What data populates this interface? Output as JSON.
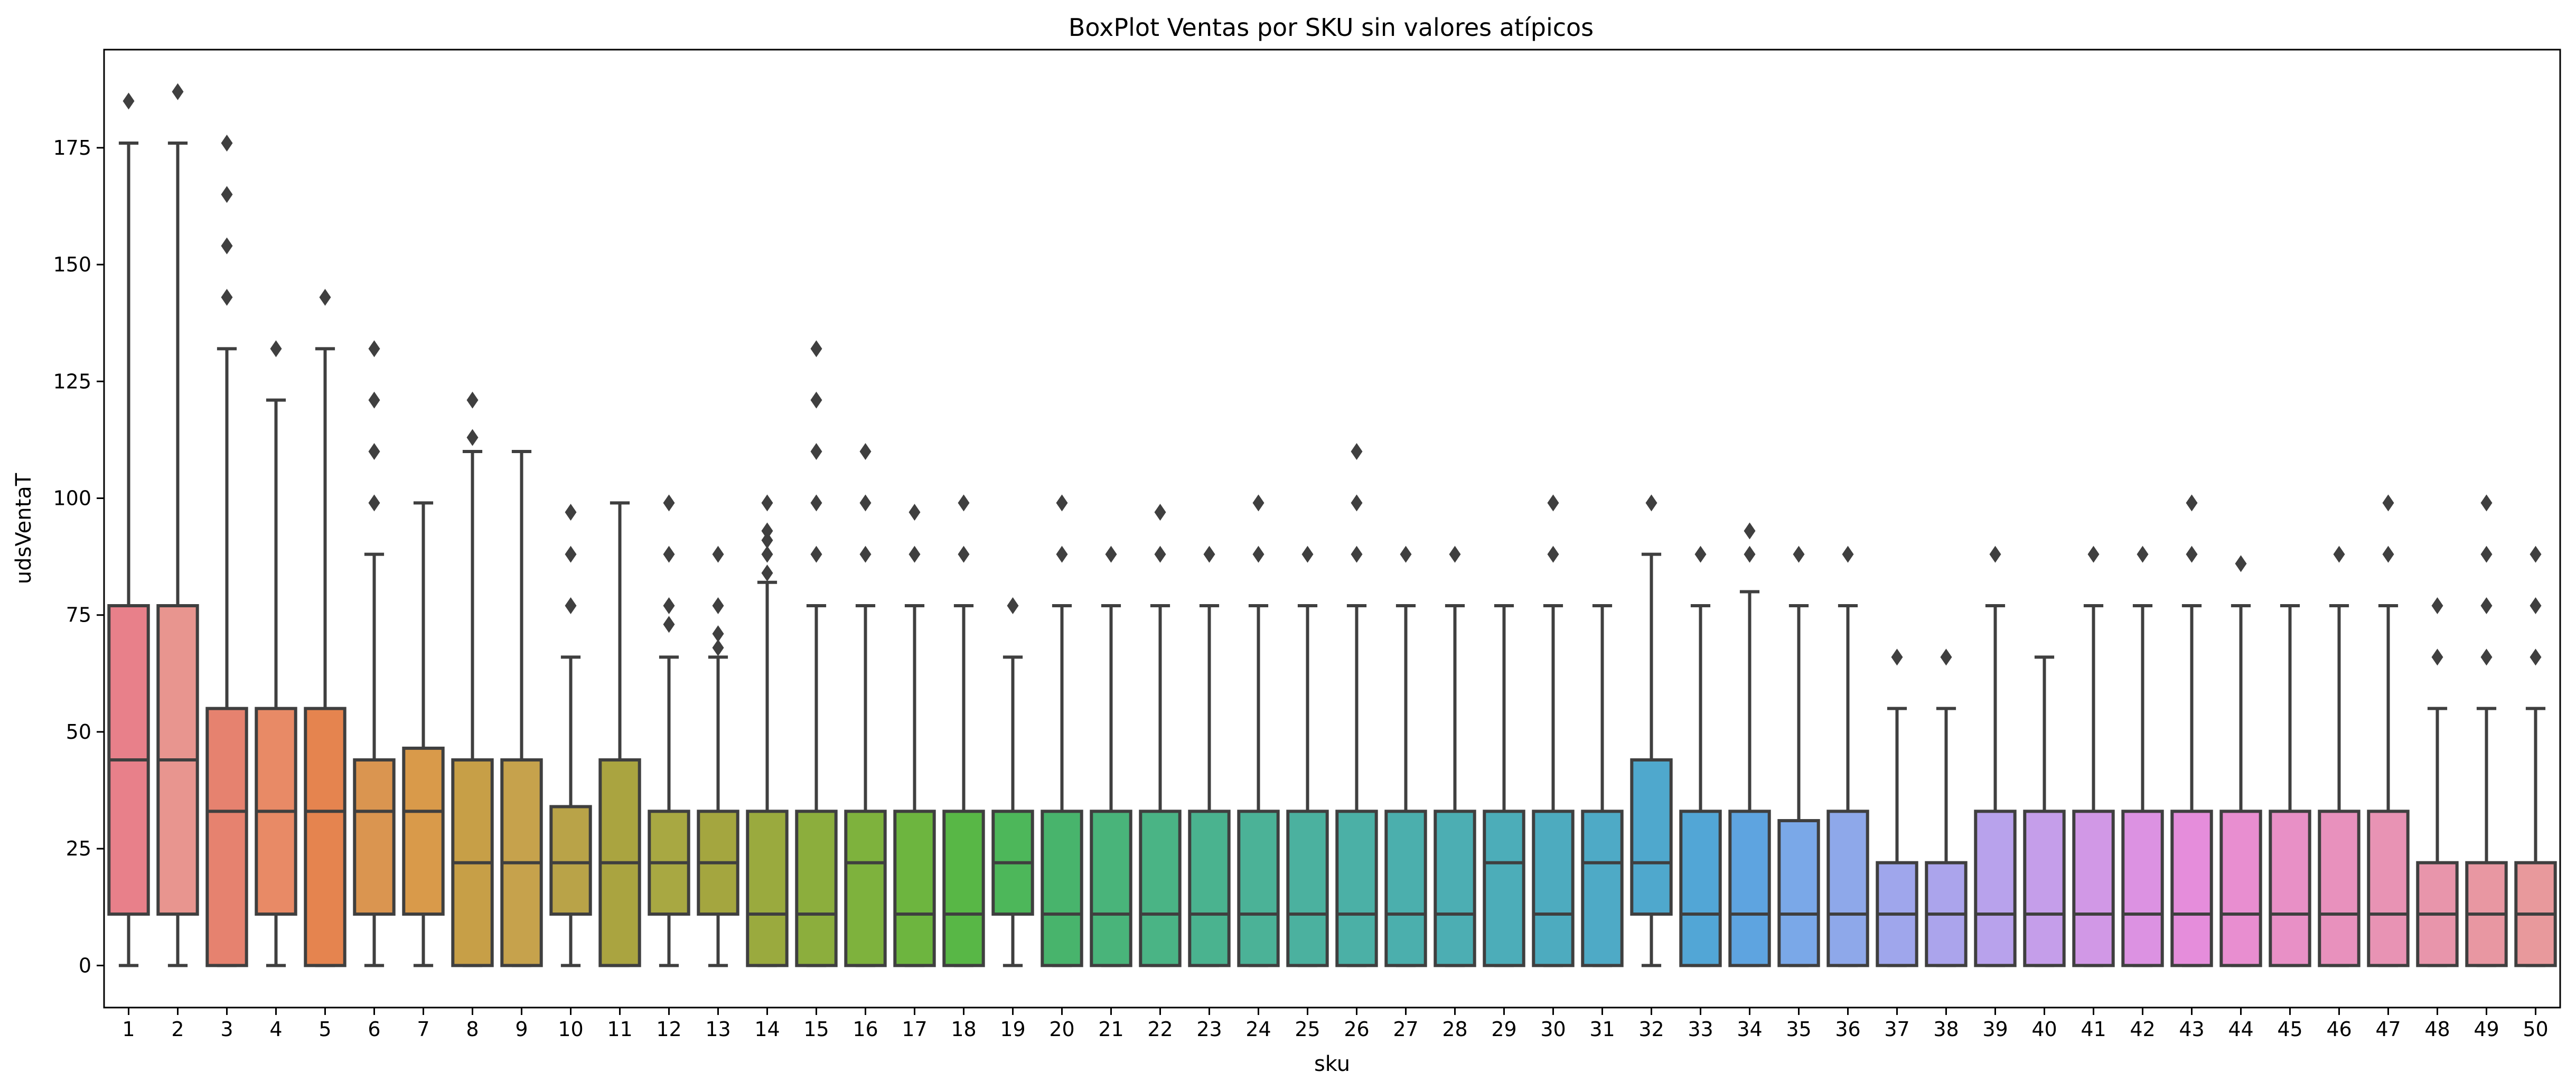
{
  "chart_data": {
    "type": "box",
    "title": "BoxPlot Ventas por SKU sin valores atípicos",
    "xlabel": "sku",
    "ylabel": "udsVentaT",
    "ylim": [
      -9,
      196
    ],
    "yticks": [
      0,
      25,
      50,
      75,
      100,
      125,
      150,
      175
    ],
    "grid": false,
    "categories": [
      "1",
      "2",
      "3",
      "4",
      "5",
      "6",
      "7",
      "8",
      "9",
      "10",
      "11",
      "12",
      "13",
      "14",
      "15",
      "16",
      "17",
      "18",
      "19",
      "20",
      "21",
      "22",
      "23",
      "24",
      "25",
      "26",
      "27",
      "28",
      "29",
      "30",
      "31",
      "32",
      "33",
      "34",
      "35",
      "36",
      "37",
      "38",
      "39",
      "40",
      "41",
      "42",
      "43",
      "44",
      "45",
      "46",
      "47",
      "48",
      "49",
      "50"
    ],
    "boxes": [
      {
        "sku": "1",
        "min": 0,
        "q1": 11,
        "median": 44,
        "q3": 77,
        "max": 176,
        "fliers": [
          185
        ],
        "color": "#e8808a"
      },
      {
        "sku": "2",
        "min": 0,
        "q1": 11,
        "median": 44,
        "q3": 77,
        "max": 176,
        "fliers": [
          187
        ],
        "color": "#e8958f"
      },
      {
        "sku": "3",
        "min": 0,
        "q1": 0,
        "median": 33,
        "q3": 55,
        "max": 132,
        "fliers": [
          143,
          154,
          165,
          176
        ],
        "color": "#e6826f"
      },
      {
        "sku": "4",
        "min": 0,
        "q1": 11,
        "median": 33,
        "q3": 55,
        "max": 121,
        "fliers": [
          132
        ],
        "color": "#e88a66"
      },
      {
        "sku": "5",
        "min": 0,
        "q1": 0,
        "median": 33,
        "q3": 55,
        "max": 132,
        "fliers": [
          143
        ],
        "color": "#e5844f"
      },
      {
        "sku": "6",
        "min": 0,
        "q1": 11,
        "median": 33,
        "q3": 44,
        "max": 88,
        "fliers": [
          99,
          110,
          121,
          132
        ],
        "color": "#da9550"
      },
      {
        "sku": "7",
        "min": 0,
        "q1": 11,
        "median": 33,
        "q3": 46.5,
        "max": 99,
        "fliers": [],
        "color": "#d99a4a"
      },
      {
        "sku": "8",
        "min": 0,
        "q1": 0,
        "median": 22,
        "q3": 44,
        "max": 110,
        "fliers": [
          113,
          121
        ],
        "color": "#c79f47"
      },
      {
        "sku": "9",
        "min": 0,
        "q1": 0,
        "median": 22,
        "q3": 44,
        "max": 110,
        "fliers": [],
        "color": "#c6a24c"
      },
      {
        "sku": "10",
        "min": 0,
        "q1": 11,
        "median": 22,
        "q3": 34,
        "max": 66,
        "fliers": [
          77,
          88,
          97
        ],
        "color": "#b9a348"
      },
      {
        "sku": "11",
        "min": 0,
        "q1": 0,
        "median": 22,
        "q3": 44,
        "max": 99,
        "fliers": [],
        "color": "#aaa440"
      },
      {
        "sku": "12",
        "min": 0,
        "q1": 11,
        "median": 22,
        "q3": 33,
        "max": 66,
        "fliers": [
          73,
          77,
          88,
          99
        ],
        "color": "#a8a842"
      },
      {
        "sku": "13",
        "min": 0,
        "q1": 11,
        "median": 22,
        "q3": 33,
        "max": 66,
        "fliers": [
          68,
          71,
          77,
          88
        ],
        "color": "#a4a63f"
      },
      {
        "sku": "14",
        "min": 0,
        "q1": 0,
        "median": 11,
        "q3": 33,
        "max": 82,
        "fliers": [
          84,
          88,
          91,
          93,
          99
        ],
        "color": "#9aaa3e"
      },
      {
        "sku": "15",
        "min": 0,
        "q1": 0,
        "median": 11,
        "q3": 33,
        "max": 77,
        "fliers": [
          88,
          99,
          110,
          121,
          132
        ],
        "color": "#8cae3d"
      },
      {
        "sku": "16",
        "min": 0,
        "q1": 0,
        "median": 22,
        "q3": 33,
        "max": 77,
        "fliers": [
          88,
          99,
          110
        ],
        "color": "#7eb23d"
      },
      {
        "sku": "17",
        "min": 0,
        "q1": 0,
        "median": 11,
        "q3": 33,
        "max": 77,
        "fliers": [
          88,
          97
        ],
        "color": "#6db53f"
      },
      {
        "sku": "18",
        "min": 0,
        "q1": 0,
        "median": 11,
        "q3": 33,
        "max": 77,
        "fliers": [
          88,
          99
        ],
        "color": "#58b746"
      },
      {
        "sku": "19",
        "min": 0,
        "q1": 11,
        "median": 22,
        "q3": 33,
        "max": 66,
        "fliers": [
          77
        ],
        "color": "#4db75a"
      },
      {
        "sku": "20",
        "min": 0,
        "q1": 0,
        "median": 11,
        "q3": 33,
        "max": 77,
        "fliers": [
          88,
          99
        ],
        "color": "#48b46c"
      },
      {
        "sku": "21",
        "min": 0,
        "q1": 0,
        "median": 11,
        "q3": 33,
        "max": 77,
        "fliers": [
          88
        ],
        "color": "#49b47a"
      },
      {
        "sku": "22",
        "min": 0,
        "q1": 0,
        "median": 11,
        "q3": 33,
        "max": 77,
        "fliers": [
          88,
          97
        ],
        "color": "#4ab485"
      },
      {
        "sku": "23",
        "min": 0,
        "q1": 0,
        "median": 11,
        "q3": 33,
        "max": 77,
        "fliers": [
          88
        ],
        "color": "#4ab38f"
      },
      {
        "sku": "24",
        "min": 0,
        "q1": 0,
        "median": 11,
        "q3": 33,
        "max": 77,
        "fliers": [
          88,
          99
        ],
        "color": "#4bb297"
      },
      {
        "sku": "25",
        "min": 0,
        "q1": 0,
        "median": 11,
        "q3": 33,
        "max": 77,
        "fliers": [
          88
        ],
        "color": "#4bb19f"
      },
      {
        "sku": "26",
        "min": 0,
        "q1": 0,
        "median": 11,
        "q3": 33,
        "max": 77,
        "fliers": [
          88,
          99,
          110
        ],
        "color": "#4bb0a6"
      },
      {
        "sku": "27",
        "min": 0,
        "q1": 0,
        "median": 11,
        "q3": 33,
        "max": 77,
        "fliers": [
          88
        ],
        "color": "#4bafad"
      },
      {
        "sku": "28",
        "min": 0,
        "q1": 0,
        "median": 11,
        "q3": 33,
        "max": 77,
        "fliers": [
          88
        ],
        "color": "#4caeb3"
      },
      {
        "sku": "29",
        "min": 0,
        "q1": 0,
        "median": 22,
        "q3": 33,
        "max": 77,
        "fliers": [],
        "color": "#4cadb9"
      },
      {
        "sku": "30",
        "min": 0,
        "q1": 0,
        "median": 11,
        "q3": 33,
        "max": 77,
        "fliers": [
          88,
          99
        ],
        "color": "#4dabbf"
      },
      {
        "sku": "31",
        "min": 0,
        "q1": 0,
        "median": 22,
        "q3": 33,
        "max": 77,
        "fliers": [],
        "color": "#4eaac6"
      },
      {
        "sku": "32",
        "min": 0,
        "q1": 11,
        "median": 22,
        "q3": 44,
        "max": 88,
        "fliers": [
          99
        ],
        "color": "#4fa8cd"
      },
      {
        "sku": "33",
        "min": 0,
        "q1": 0,
        "median": 11,
        "q3": 33,
        "max": 77,
        "fliers": [
          88
        ],
        "color": "#52a6d6"
      },
      {
        "sku": "34",
        "min": 0,
        "q1": 0,
        "median": 11,
        "q3": 33,
        "max": 80,
        "fliers": [
          88,
          93
        ],
        "color": "#5ea4e0"
      },
      {
        "sku": "35",
        "min": 0,
        "q1": 0,
        "median": 11,
        "q3": 31,
        "max": 77,
        "fliers": [
          88
        ],
        "color": "#7aa8e8"
      },
      {
        "sku": "36",
        "min": 0,
        "q1": 0,
        "median": 11,
        "q3": 33,
        "max": 77,
        "fliers": [
          88
        ],
        "color": "#8ea8ea"
      },
      {
        "sku": "37",
        "min": 0,
        "q1": 0,
        "median": 11,
        "q3": 22,
        "max": 55,
        "fliers": [
          66
        ],
        "color": "#9fa6ec"
      },
      {
        "sku": "38",
        "min": 0,
        "q1": 0,
        "median": 11,
        "q3": 22,
        "max": 55,
        "fliers": [
          66
        ],
        "color": "#aba4ec"
      },
      {
        "sku": "39",
        "min": 0,
        "q1": 0,
        "median": 11,
        "q3": 33,
        "max": 77,
        "fliers": [
          88
        ],
        "color": "#b8a2ec"
      },
      {
        "sku": "40",
        "min": 0,
        "q1": 0,
        "median": 11,
        "q3": 33,
        "max": 66,
        "fliers": [],
        "color": "#c59eea"
      },
      {
        "sku": "41",
        "min": 0,
        "q1": 0,
        "median": 11,
        "q3": 33,
        "max": 77,
        "fliers": [
          88
        ],
        "color": "#d198e6"
      },
      {
        "sku": "42",
        "min": 0,
        "q1": 0,
        "median": 11,
        "q3": 33,
        "max": 77,
        "fliers": [
          88
        ],
        "color": "#dc92e2"
      },
      {
        "sku": "43",
        "min": 0,
        "q1": 0,
        "median": 11,
        "q3": 33,
        "max": 77,
        "fliers": [
          88,
          99
        ],
        "color": "#e58ddb"
      },
      {
        "sku": "44",
        "min": 0,
        "q1": 0,
        "median": 11,
        "q3": 33,
        "max": 77,
        "fliers": [
          86
        ],
        "color": "#e88ed0"
      },
      {
        "sku": "45",
        "min": 0,
        "q1": 0,
        "median": 11,
        "q3": 33,
        "max": 77,
        "fliers": [],
        "color": "#e890c6"
      },
      {
        "sku": "46",
        "min": 0,
        "q1": 0,
        "median": 11,
        "q3": 33,
        "max": 77,
        "fliers": [
          88
        ],
        "color": "#e891bd"
      },
      {
        "sku": "47",
        "min": 0,
        "q1": 0,
        "median": 11,
        "q3": 33,
        "max": 77,
        "fliers": [
          88,
          99
        ],
        "color": "#e893b4"
      },
      {
        "sku": "48",
        "min": 0,
        "q1": 0,
        "median": 11,
        "q3": 22,
        "max": 55,
        "fliers": [
          66,
          77
        ],
        "color": "#e895ab"
      },
      {
        "sku": "49",
        "min": 0,
        "q1": 0,
        "median": 11,
        "q3": 22,
        "max": 55,
        "fliers": [
          66,
          77,
          88,
          99
        ],
        "color": "#e897a2"
      },
      {
        "sku": "50",
        "min": 0,
        "q1": 0,
        "median": 11,
        "q3": 22,
        "max": 55,
        "fliers": [
          66,
          77,
          88
        ],
        "color": "#e8999c"
      }
    ]
  }
}
